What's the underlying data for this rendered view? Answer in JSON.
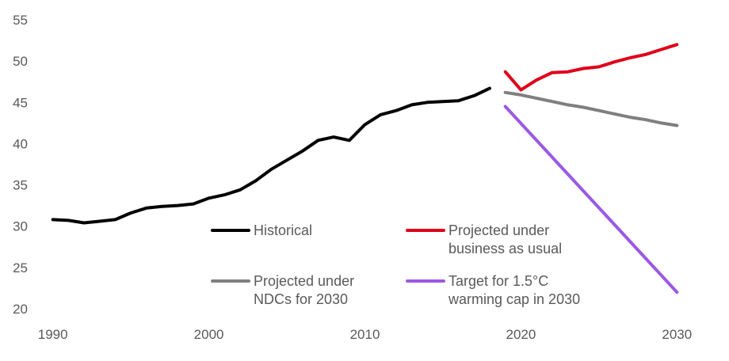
{
  "chart_data": {
    "type": "line",
    "title": "",
    "xlabel": "",
    "ylabel": "",
    "xlim": [
      1989,
      2031
    ],
    "ylim": [
      20,
      55
    ],
    "xticks": [
      1990,
      2000,
      2010,
      2020,
      2030
    ],
    "yticks": [
      20,
      25,
      30,
      35,
      40,
      45,
      50,
      55
    ],
    "grid": false,
    "legend_position": "bottom-center-right, two columns",
    "series": [
      {
        "name": "Historical",
        "color": "#000000",
        "x": [
          1990,
          1991,
          1992,
          1993,
          1994,
          1995,
          1996,
          1997,
          1998,
          1999,
          2000,
          2001,
          2002,
          2003,
          2004,
          2005,
          2006,
          2007,
          2008,
          2009,
          2010,
          2011,
          2012,
          2013,
          2014,
          2015,
          2016,
          2017,
          2018
        ],
        "y": [
          30.8,
          30.7,
          30.4,
          30.6,
          30.8,
          31.6,
          32.2,
          32.4,
          32.5,
          32.7,
          33.4,
          33.8,
          34.4,
          35.5,
          36.9,
          38.0,
          39.1,
          40.4,
          40.8,
          40.4,
          42.3,
          43.5,
          44.0,
          44.7,
          45.0,
          45.1,
          45.2,
          45.8,
          46.7
        ]
      },
      {
        "name": "Projected under business as usual",
        "color": "#e00019",
        "x": [
          2019,
          2020,
          2021,
          2022,
          2023,
          2024,
          2025,
          2026,
          2027,
          2028,
          2029,
          2030
        ],
        "y": [
          48.7,
          46.5,
          47.7,
          48.6,
          48.7,
          49.1,
          49.3,
          49.9,
          50.4,
          50.8,
          51.4,
          52.0
        ]
      },
      {
        "name": "Projected under NDCs for 2030",
        "color": "#7f7f7f",
        "x": [
          2019,
          2020,
          2021,
          2022,
          2023,
          2024,
          2025,
          2026,
          2027,
          2028,
          2029,
          2030
        ],
        "y": [
          46.2,
          45.9,
          45.5,
          45.1,
          44.7,
          44.4,
          44.0,
          43.6,
          43.2,
          42.9,
          42.5,
          42.2
        ]
      },
      {
        "name": "Target for 1.5°C warming cap in 2030",
        "color": "#9b59e3",
        "x": [
          2019,
          2030
        ],
        "y": [
          44.5,
          22.0
        ]
      }
    ],
    "legend": [
      {
        "line1": "Historical",
        "line2": ""
      },
      {
        "line1": "Projected under",
        "line2": "business as usual"
      },
      {
        "line1": "Projected under",
        "line2": "NDCs for 2030"
      },
      {
        "line1": "Target for 1.5°C",
        "line2": "warming cap in 2030"
      }
    ]
  }
}
